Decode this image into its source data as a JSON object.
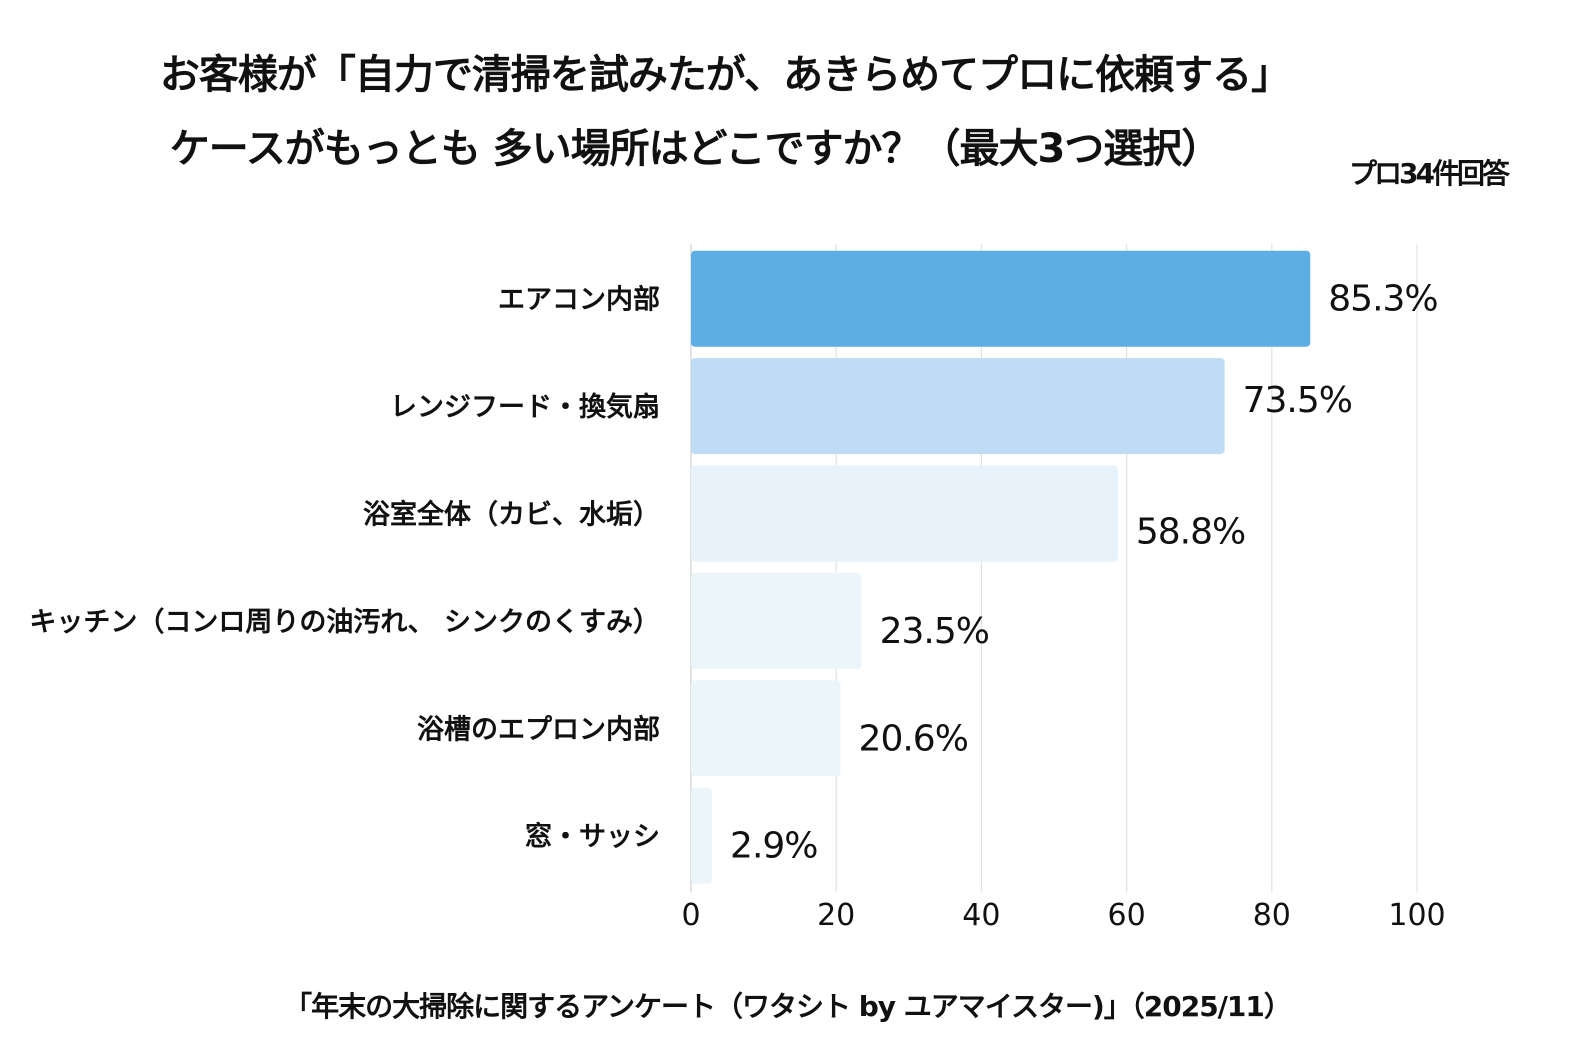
{
  "chart_data": {
    "type": "bar",
    "orientation": "horizontal",
    "title": "お客様が「自力で清掃を試みたが、あきらめてプロに依頼する」",
    "title_line2": "ケースがもっとも 多い場所はどこですか？（最大3つ選択）",
    "note": "プロ34件回答",
    "source": "「年末の大掃除に関するアンケート（ワタシト by ユアマイスター)」（2025/11）",
    "categories": [
      "エアコン内部",
      "レンジフード・換気扇",
      "浴室全体（カビ、水垢）",
      "キッチン（コンロ周りの油汚れ、 シンクのくすみ）",
      "浴槽のエプロン内部",
      "窓・サッシ"
    ],
    "values": [
      85.3,
      73.5,
      58.8,
      23.5,
      20.6,
      2.9
    ],
    "data_labels": [
      "85.3%",
      "73.5%",
      "58.8%",
      "23.5%",
      "20.6%",
      "2.9%"
    ],
    "bar_colors": [
      "#5eaee6",
      "#bfdcf4",
      "#e7f2fb",
      "#ebf5fa",
      "#ebf5fa",
      "#ebf5fa"
    ],
    "xlim": [
      0,
      100
    ],
    "xticks": [
      "0",
      "20",
      "40",
      "60",
      "80",
      "100"
    ],
    "xlabel": "",
    "ylabel": "",
    "grid": "vertical",
    "legend": "none"
  }
}
